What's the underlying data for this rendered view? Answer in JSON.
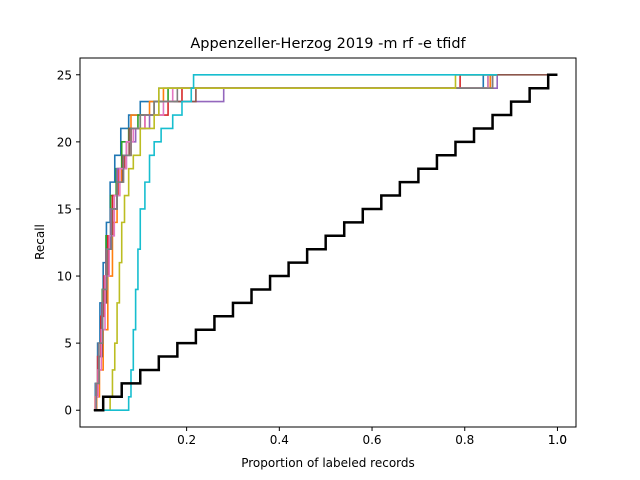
{
  "chart_data": {
    "type": "line",
    "title": "Appenzeller-Herzog 2019 -m rf -e tfidf",
    "xlabel": "Proportion of labeled records",
    "ylabel": "Recall",
    "xlim": [
      -0.03,
      1.04
    ],
    "ylim": [
      -1.25,
      26.25
    ],
    "xticks": [
      0.2,
      0.4,
      0.6,
      0.8,
      1.0
    ],
    "xtick_labels": [
      "0.2",
      "0.4",
      "0.6",
      "0.8",
      "1.0"
    ],
    "extra_xtick_labels": [
      {
        "x": 1.0,
        "label": "1.0"
      }
    ],
    "yticks": [
      0,
      5,
      10,
      15,
      20,
      25
    ],
    "ytick_labels": [
      "0",
      "5",
      "10",
      "15",
      "20",
      "25"
    ],
    "grid": false,
    "legend": "none",
    "series": [
      {
        "color": "#1f77b4",
        "points": [
          [
            0.0,
            0
          ],
          [
            0.003,
            2
          ],
          [
            0.008,
            5
          ],
          [
            0.013,
            8
          ],
          [
            0.02,
            11
          ],
          [
            0.027,
            14
          ],
          [
            0.035,
            17
          ],
          [
            0.045,
            19
          ],
          [
            0.058,
            21
          ],
          [
            0.075,
            22
          ],
          [
            0.1,
            23
          ],
          [
            0.14,
            24
          ],
          [
            0.83,
            24
          ],
          [
            0.84,
            25
          ],
          [
            0.87,
            25
          ]
        ]
      },
      {
        "color": "#ff7f0e",
        "points": [
          [
            0.0,
            0
          ],
          [
            0.006,
            1
          ],
          [
            0.012,
            3
          ],
          [
            0.02,
            6
          ],
          [
            0.03,
            10
          ],
          [
            0.04,
            14
          ],
          [
            0.05,
            17
          ],
          [
            0.06,
            19
          ],
          [
            0.07,
            20
          ],
          [
            0.08,
            22
          ],
          [
            0.12,
            23
          ],
          [
            0.15,
            24
          ],
          [
            0.845,
            24
          ],
          [
            0.855,
            25
          ],
          [
            0.87,
            25
          ]
        ]
      },
      {
        "color": "#2ca02c",
        "points": [
          [
            0.0,
            0
          ],
          [
            0.004,
            2
          ],
          [
            0.01,
            5
          ],
          [
            0.018,
            9
          ],
          [
            0.026,
            13
          ],
          [
            0.036,
            16
          ],
          [
            0.048,
            18
          ],
          [
            0.06,
            20
          ],
          [
            0.075,
            21
          ],
          [
            0.095,
            22
          ],
          [
            0.13,
            23
          ],
          [
            0.16,
            24
          ],
          [
            0.835,
            24
          ],
          [
            0.85,
            25
          ],
          [
            0.87,
            25
          ]
        ]
      },
      {
        "color": "#d62728",
        "points": [
          [
            0.0,
            0
          ],
          [
            0.003,
            1
          ],
          [
            0.008,
            4
          ],
          [
            0.015,
            7
          ],
          [
            0.022,
            10
          ],
          [
            0.03,
            13
          ],
          [
            0.04,
            16
          ],
          [
            0.052,
            18
          ],
          [
            0.066,
            19
          ],
          [
            0.08,
            21
          ],
          [
            0.11,
            22
          ],
          [
            0.16,
            23
          ],
          [
            0.19,
            24
          ],
          [
            0.775,
            24
          ],
          [
            0.79,
            25
          ],
          [
            0.87,
            25
          ]
        ]
      },
      {
        "color": "#9467bd",
        "points": [
          [
            0.0,
            0
          ],
          [
            0.004,
            2
          ],
          [
            0.01,
            5
          ],
          [
            0.017,
            8
          ],
          [
            0.026,
            12
          ],
          [
            0.036,
            15
          ],
          [
            0.05,
            18
          ],
          [
            0.07,
            20
          ],
          [
            0.09,
            21
          ],
          [
            0.12,
            22
          ],
          [
            0.14,
            23
          ],
          [
            0.28,
            23
          ],
          [
            0.28,
            24
          ],
          [
            0.86,
            24
          ],
          [
            0.87,
            25
          ]
        ]
      },
      {
        "color": "#8c564b",
        "points": [
          [
            0.0,
            0
          ],
          [
            0.005,
            2
          ],
          [
            0.011,
            4
          ],
          [
            0.018,
            8
          ],
          [
            0.027,
            12
          ],
          [
            0.038,
            15
          ],
          [
            0.05,
            17
          ],
          [
            0.062,
            19
          ],
          [
            0.076,
            21
          ],
          [
            0.1,
            22
          ],
          [
            0.13,
            23
          ],
          [
            0.22,
            24
          ],
          [
            0.85,
            24
          ],
          [
            0.86,
            25
          ],
          [
            0.98,
            25
          ]
        ]
      },
      {
        "color": "#e377c2",
        "points": [
          [
            0.0,
            0
          ],
          [
            0.004,
            1
          ],
          [
            0.009,
            3
          ],
          [
            0.016,
            6
          ],
          [
            0.024,
            10
          ],
          [
            0.033,
            13
          ],
          [
            0.044,
            16
          ],
          [
            0.056,
            18
          ],
          [
            0.07,
            20
          ],
          [
            0.085,
            21
          ],
          [
            0.11,
            22
          ],
          [
            0.15,
            23
          ],
          [
            0.17,
            24
          ],
          [
            0.84,
            24
          ],
          [
            0.85,
            25
          ],
          [
            0.87,
            25
          ]
        ]
      },
      {
        "color": "#7f7f7f",
        "points": [
          [
            0.0,
            0
          ],
          [
            0.005,
            2
          ],
          [
            0.011,
            5
          ],
          [
            0.019,
            9
          ],
          [
            0.028,
            12
          ],
          [
            0.038,
            15
          ],
          [
            0.05,
            17
          ],
          [
            0.064,
            19
          ],
          [
            0.08,
            21
          ],
          [
            0.1,
            22
          ],
          [
            0.13,
            23
          ],
          [
            0.18,
            24
          ],
          [
            0.85,
            24
          ],
          [
            0.86,
            25
          ],
          [
            0.87,
            25
          ]
        ]
      },
      {
        "color": "#bcbd22",
        "points": [
          [
            0.0,
            0
          ],
          [
            0.03,
            0
          ],
          [
            0.035,
            1
          ],
          [
            0.04,
            3
          ],
          [
            0.045,
            5
          ],
          [
            0.05,
            8
          ],
          [
            0.055,
            11
          ],
          [
            0.06,
            14
          ],
          [
            0.066,
            16
          ],
          [
            0.075,
            18
          ],
          [
            0.085,
            19
          ],
          [
            0.1,
            21
          ],
          [
            0.13,
            22
          ],
          [
            0.14,
            24
          ],
          [
            0.77,
            24
          ],
          [
            0.78,
            25
          ],
          [
            0.87,
            25
          ]
        ]
      },
      {
        "color": "#17becf",
        "points": [
          [
            0.0,
            0
          ],
          [
            0.07,
            0
          ],
          [
            0.075,
            1
          ],
          [
            0.08,
            3
          ],
          [
            0.085,
            6
          ],
          [
            0.09,
            9
          ],
          [
            0.095,
            12
          ],
          [
            0.1,
            15
          ],
          [
            0.11,
            17
          ],
          [
            0.12,
            19
          ],
          [
            0.13,
            20
          ],
          [
            0.145,
            21
          ],
          [
            0.17,
            22
          ],
          [
            0.19,
            23
          ],
          [
            0.21,
            24
          ],
          [
            0.215,
            25
          ],
          [
            0.87,
            25
          ]
        ]
      },
      {
        "color": "#000000",
        "points": [
          [
            0.0,
            0
          ],
          [
            0.02,
            0
          ],
          [
            0.02,
            1
          ],
          [
            0.06,
            1
          ],
          [
            0.06,
            2
          ],
          [
            0.1,
            2
          ],
          [
            0.1,
            3
          ],
          [
            0.14,
            3
          ],
          [
            0.14,
            4
          ],
          [
            0.18,
            4
          ],
          [
            0.18,
            5
          ],
          [
            0.22,
            5
          ],
          [
            0.22,
            6
          ],
          [
            0.26,
            6
          ],
          [
            0.26,
            7
          ],
          [
            0.3,
            7
          ],
          [
            0.3,
            8
          ],
          [
            0.34,
            8
          ],
          [
            0.34,
            9
          ],
          [
            0.38,
            9
          ],
          [
            0.38,
            10
          ],
          [
            0.42,
            10
          ],
          [
            0.42,
            11
          ],
          [
            0.46,
            11
          ],
          [
            0.46,
            12
          ],
          [
            0.5,
            12
          ],
          [
            0.5,
            13
          ],
          [
            0.54,
            13
          ],
          [
            0.54,
            14
          ],
          [
            0.58,
            14
          ],
          [
            0.58,
            15
          ],
          [
            0.62,
            15
          ],
          [
            0.62,
            16
          ],
          [
            0.66,
            16
          ],
          [
            0.66,
            17
          ],
          [
            0.7,
            17
          ],
          [
            0.7,
            18
          ],
          [
            0.74,
            18
          ],
          [
            0.74,
            19
          ],
          [
            0.78,
            19
          ],
          [
            0.78,
            20
          ],
          [
            0.82,
            20
          ],
          [
            0.82,
            21
          ],
          [
            0.86,
            21
          ],
          [
            0.86,
            22
          ],
          [
            0.9,
            22
          ],
          [
            0.9,
            23
          ],
          [
            0.94,
            23
          ],
          [
            0.94,
            24
          ],
          [
            0.98,
            24
          ],
          [
            0.98,
            25
          ],
          [
            1.0,
            25
          ]
        ]
      }
    ]
  }
}
